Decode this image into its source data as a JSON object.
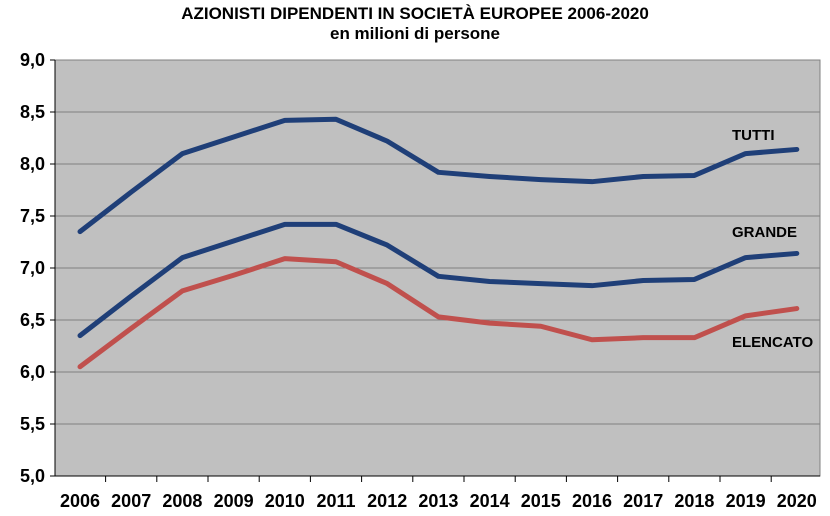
{
  "chart_data": {
    "type": "line",
    "title": "AZIONISTI DIPENDENTI IN SOCIETÀ EUROPEE 2006-2020",
    "subtitle": "en milioni di persone",
    "categories": [
      "2006",
      "2007",
      "2008",
      "2009",
      "2010",
      "2011",
      "2012",
      "2013",
      "2014",
      "2015",
      "2016",
      "2017",
      "2018",
      "2019",
      "2020"
    ],
    "ylim": [
      5.0,
      9.0
    ],
    "yticks": [
      "5,0",
      "5,5",
      "6,0",
      "6,5",
      "7,0",
      "7,5",
      "8,0",
      "8,5",
      "9,0"
    ],
    "grid": true,
    "plot_background": "#c0c0c0",
    "series": [
      {
        "name": "TUTTI",
        "color": "#1f3f78",
        "values": [
          7.35,
          7.73,
          8.1,
          8.26,
          8.42,
          8.43,
          8.22,
          7.92,
          7.88,
          7.85,
          7.83,
          7.88,
          7.89,
          8.1,
          8.14
        ]
      },
      {
        "name": "GRANDE",
        "color": "#1f3f78",
        "values": [
          6.35,
          6.73,
          7.1,
          7.26,
          7.42,
          7.42,
          7.22,
          6.92,
          6.87,
          6.85,
          6.83,
          6.88,
          6.89,
          7.1,
          7.14
        ]
      },
      {
        "name": "ELENCATO",
        "color": "#c0504d",
        "values": [
          6.05,
          6.42,
          6.78,
          6.93,
          7.09,
          7.06,
          6.85,
          6.53,
          6.47,
          6.44,
          6.31,
          6.33,
          6.33,
          6.54,
          6.61
        ]
      }
    ]
  }
}
